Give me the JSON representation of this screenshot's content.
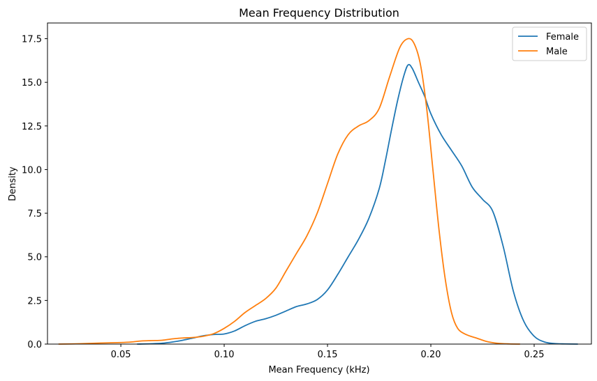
{
  "chart_data": {
    "type": "line",
    "title": "Mean Frequency Distribution",
    "xlabel": "Mean Frequency (kHz)",
    "ylabel": "Density",
    "xlim": [
      0.0145,
      0.2777
    ],
    "ylim": [
      0,
      18.4
    ],
    "x_ticks": [
      0.05,
      0.1,
      0.15,
      0.2,
      0.25
    ],
    "x_tick_labels": [
      "0.05",
      "0.10",
      "0.15",
      "0.20",
      "0.25"
    ],
    "y_ticks": [
      0,
      2.5,
      5.0,
      7.5,
      10.0,
      12.5,
      15.0,
      17.5
    ],
    "y_tick_labels": [
      "0.0",
      "2.5",
      "5.0",
      "7.5",
      "10.0",
      "12.5",
      "15.0",
      "17.5"
    ],
    "grid": false,
    "legend_position": "top-right",
    "series": [
      {
        "name": "Female",
        "color": "#1f77b4",
        "points": [
          [
            0.058,
            0.0
          ],
          [
            0.065,
            0.02
          ],
          [
            0.07,
            0.05
          ],
          [
            0.075,
            0.12
          ],
          [
            0.08,
            0.22
          ],
          [
            0.085,
            0.35
          ],
          [
            0.09,
            0.48
          ],
          [
            0.095,
            0.55
          ],
          [
            0.1,
            0.58
          ],
          [
            0.105,
            0.75
          ],
          [
            0.11,
            1.05
          ],
          [
            0.115,
            1.3
          ],
          [
            0.12,
            1.45
          ],
          [
            0.125,
            1.65
          ],
          [
            0.13,
            1.9
          ],
          [
            0.135,
            2.15
          ],
          [
            0.14,
            2.3
          ],
          [
            0.145,
            2.55
          ],
          [
            0.15,
            3.1
          ],
          [
            0.155,
            4.0
          ],
          [
            0.16,
            5.0
          ],
          [
            0.165,
            6.0
          ],
          [
            0.17,
            7.2
          ],
          [
            0.175,
            8.9
          ],
          [
            0.178,
            10.5
          ],
          [
            0.181,
            12.3
          ],
          [
            0.184,
            14.0
          ],
          [
            0.187,
            15.4
          ],
          [
            0.189,
            16.0
          ],
          [
            0.191,
            15.8
          ],
          [
            0.194,
            15.0
          ],
          [
            0.197,
            14.2
          ],
          [
            0.2,
            13.2
          ],
          [
            0.205,
            12.0
          ],
          [
            0.21,
            11.1
          ],
          [
            0.215,
            10.2
          ],
          [
            0.22,
            9.0
          ],
          [
            0.225,
            8.3
          ],
          [
            0.23,
            7.6
          ],
          [
            0.235,
            5.6
          ],
          [
            0.24,
            3.0
          ],
          [
            0.245,
            1.3
          ],
          [
            0.25,
            0.45
          ],
          [
            0.255,
            0.12
          ],
          [
            0.26,
            0.03
          ],
          [
            0.265,
            0.01
          ],
          [
            0.271,
            0.0
          ]
        ]
      },
      {
        "name": "Male",
        "color": "#ff7f0e",
        "points": [
          [
            0.02,
            0.0
          ],
          [
            0.03,
            0.02
          ],
          [
            0.04,
            0.06
          ],
          [
            0.05,
            0.09
          ],
          [
            0.055,
            0.12
          ],
          [
            0.06,
            0.18
          ],
          [
            0.065,
            0.2
          ],
          [
            0.07,
            0.22
          ],
          [
            0.075,
            0.3
          ],
          [
            0.08,
            0.35
          ],
          [
            0.085,
            0.38
          ],
          [
            0.09,
            0.45
          ],
          [
            0.095,
            0.6
          ],
          [
            0.1,
            0.9
          ],
          [
            0.105,
            1.3
          ],
          [
            0.11,
            1.8
          ],
          [
            0.115,
            2.2
          ],
          [
            0.12,
            2.6
          ],
          [
            0.125,
            3.2
          ],
          [
            0.13,
            4.2
          ],
          [
            0.135,
            5.2
          ],
          [
            0.14,
            6.2
          ],
          [
            0.145,
            7.5
          ],
          [
            0.15,
            9.2
          ],
          [
            0.155,
            10.9
          ],
          [
            0.16,
            12.0
          ],
          [
            0.165,
            12.5
          ],
          [
            0.17,
            12.8
          ],
          [
            0.175,
            13.5
          ],
          [
            0.18,
            15.3
          ],
          [
            0.185,
            17.0
          ],
          [
            0.189,
            17.5
          ],
          [
            0.192,
            17.2
          ],
          [
            0.195,
            16.0
          ],
          [
            0.198,
            13.5
          ],
          [
            0.201,
            10.0
          ],
          [
            0.204,
            6.5
          ],
          [
            0.207,
            3.7
          ],
          [
            0.21,
            1.8
          ],
          [
            0.213,
            0.9
          ],
          [
            0.217,
            0.55
          ],
          [
            0.222,
            0.35
          ],
          [
            0.227,
            0.15
          ],
          [
            0.232,
            0.05
          ],
          [
            0.238,
            0.01
          ],
          [
            0.243,
            0.0
          ]
        ]
      }
    ]
  }
}
